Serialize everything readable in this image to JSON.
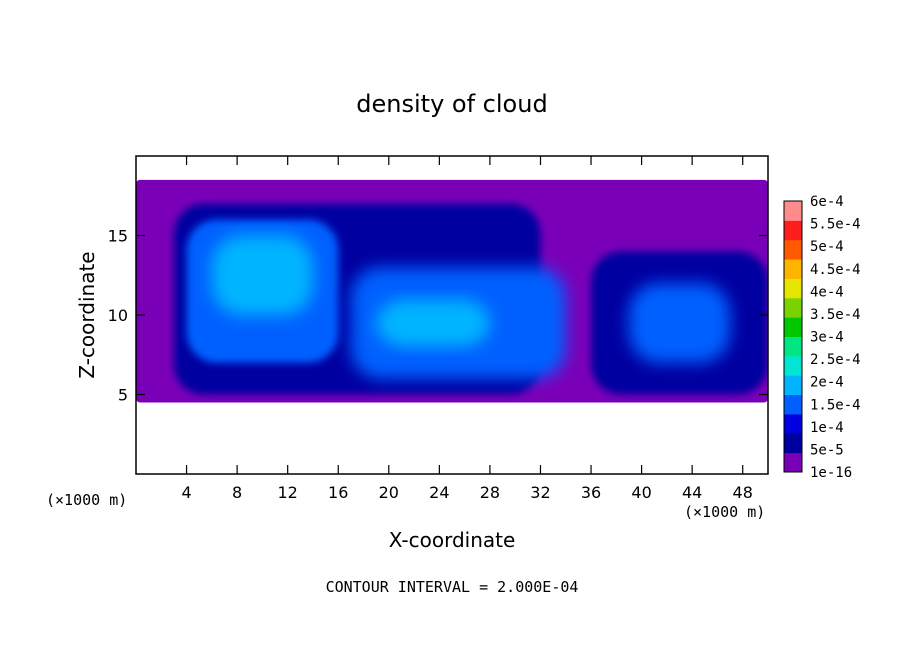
{
  "chart_data": {
    "type": "heatmap",
    "title": "density of cloud",
    "xlabel": "X-coordinate",
    "ylabel": "Z-coordinate",
    "x_unit_left": "(×1000 m)",
    "x_unit_right": "(×1000 m)",
    "footer": "CONTOUR INTERVAL = 2.000E-04",
    "xlim": [
      0,
      50
    ],
    "ylim": [
      0,
      20
    ],
    "x_ticks": [
      4,
      8,
      12,
      16,
      20,
      24,
      28,
      32,
      36,
      40,
      44,
      48
    ],
    "y_ticks": [
      5,
      10,
      15
    ],
    "colorbar": {
      "levels": [
        "1e-16",
        "5e-5",
        "1e-4",
        "1.5e-4",
        "2e-4",
        "2.5e-4",
        "3e-4",
        "3.5e-4",
        "4e-4",
        "4.5e-4",
        "5e-4",
        "5.5e-4",
        "6e-4"
      ],
      "colors": [
        "#7a00b8",
        "#0000a0",
        "#0000e0",
        "#0060ff",
        "#00b4ff",
        "#00e6d2",
        "#00e682",
        "#00c800",
        "#7ad200",
        "#e6e600",
        "#ffb400",
        "#ff5a00",
        "#ff1e1e",
        "#ff8c8c"
      ]
    },
    "cloud_regions": [
      {
        "x": [
          0,
          50
        ],
        "z": [
          4.5,
          18.5
        ],
        "level_index": 0,
        "description_value": "1e-16"
      },
      {
        "x": [
          3,
          32
        ],
        "z": [
          5,
          17
        ],
        "level_index": 1,
        "description_value": "5e-5"
      },
      {
        "x": [
          36,
          50
        ],
        "z": [
          5,
          14
        ],
        "level_index": 1,
        "description_value": "5e-5"
      },
      {
        "x": [
          4,
          16
        ],
        "z": [
          7,
          16
        ],
        "level_index": 3,
        "description_value": "1.5e-4"
      },
      {
        "x": [
          17,
          34
        ],
        "z": [
          6,
          13
        ],
        "level_index": 3,
        "description_value": "1.5e-4"
      },
      {
        "x": [
          39,
          47
        ],
        "z": [
          7,
          12
        ],
        "level_index": 3,
        "description_value": "1.5e-4"
      },
      {
        "x": [
          6,
          14
        ],
        "z": [
          10,
          15
        ],
        "level_index": 4,
        "description_value": "2e-4"
      },
      {
        "x": [
          19,
          28
        ],
        "z": [
          8,
          11
        ],
        "level_index": 4,
        "description_value": "2e-4"
      }
    ]
  }
}
